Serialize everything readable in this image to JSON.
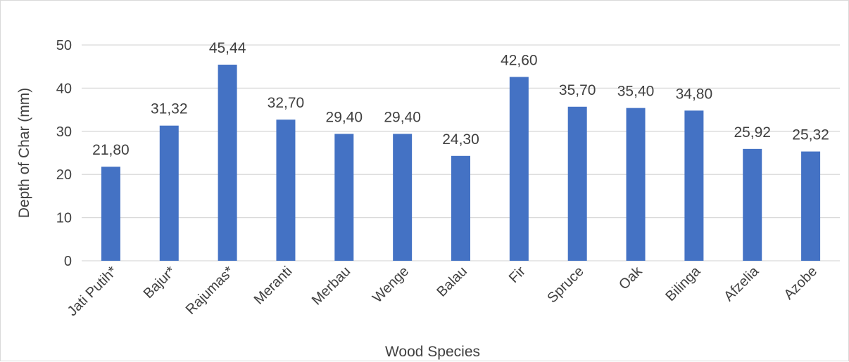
{
  "chart_data": {
    "type": "bar",
    "title": "",
    "xlabel": "Wood Species",
    "ylabel": "Depth of Char (mm)",
    "ylim": [
      0,
      50
    ],
    "yticks": [
      0,
      10,
      20,
      30,
      40,
      50
    ],
    "grid": true,
    "legend": "none",
    "bar_color": "#4472c4",
    "categories": [
      "Jati Putih*",
      "Bajur*",
      "Rajumas*",
      "Meranti",
      "Merbau",
      "Wenge",
      "Balau",
      "Fir",
      "Spruce",
      "Oak",
      "Bilinga",
      "Afzelia",
      "Azobe"
    ],
    "values": [
      21.8,
      31.32,
      45.44,
      32.7,
      29.4,
      29.4,
      24.3,
      42.6,
      35.7,
      35.4,
      34.8,
      25.92,
      25.32
    ],
    "value_labels": [
      "21,80",
      "31,32",
      "45,44",
      "32,70",
      "29,40",
      "29,40",
      "24,30",
      "42,60",
      "35,70",
      "35,40",
      "34,80",
      "25,92",
      "25,32"
    ]
  }
}
